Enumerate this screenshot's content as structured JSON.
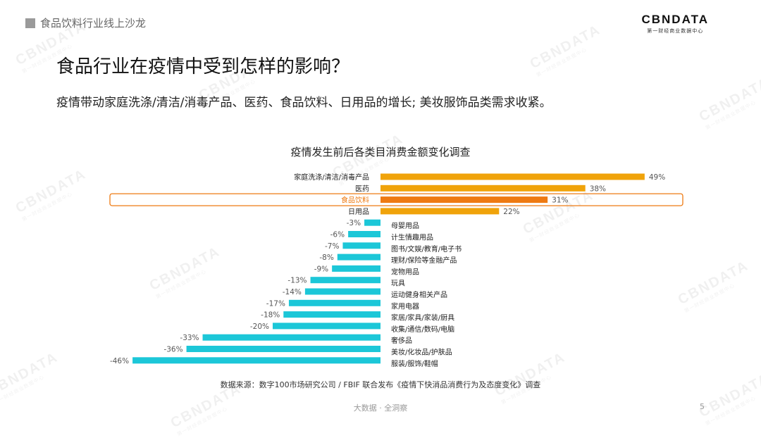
{
  "header": {
    "section_title": "食品饮料行业线上沙龙"
  },
  "logo": {
    "text": "CBNDATA",
    "subtext": "第一财经商业数据中心"
  },
  "page_title": "食品行业在疫情中受到怎样的影响？",
  "subtitle": "疫情带动家庭洗涤/清洁/消毒产品、医药、食品饮料、日用品的增长; 美妆服饰品类需求收紧。",
  "colors": {
    "positive": "#F0A30A",
    "highlight": "#EE7A12",
    "negative": "#1CC7D8",
    "highlight_box": "#EE7A12"
  },
  "chart_data": {
    "type": "bar",
    "orientation": "horizontal",
    "title": "疫情发生前后各类目消费金额变化调查",
    "unit": "%",
    "highlighted_category": "食品饮料",
    "categories": [
      "家庭洗涤/清洁/消毒产品",
      "医药",
      "食品饮料",
      "日用品",
      "母婴用品",
      "计生情趣用品",
      "图书/文娱/教育/电子书",
      "理财/保险等金融产品",
      "宠物用品",
      "玩具",
      "运动健身相关产品",
      "家用电器",
      "家居/家具/家装/厨具",
      "收集/通信/数码/电脑",
      "奢侈品",
      "美妆/化妆品/护肤品",
      "服装/服饰/鞋帽"
    ],
    "values": [
      49,
      38,
      31,
      22,
      -3,
      -6,
      -7,
      -8,
      -9,
      -13,
      -14,
      -17,
      -18,
      -20,
      -33,
      -36,
      -46
    ],
    "value_labels": [
      "49%",
      "38%",
      "31%",
      "22%",
      "-3%",
      "-6%",
      "-7%",
      "-8%",
      "-9%",
      "-13%",
      "-14%",
      "-17%",
      "-18%",
      "-20%",
      "-33%",
      "-36%",
      "-46%"
    ]
  },
  "source": "数据来源：数字100市场研究公司 / FBIF 联合发布《疫情下快消品消费行为及态度变化》调查",
  "footer": "大数据 · 全洞察",
  "page_number": "5",
  "watermark": {
    "text": "CBNDATA",
    "subtext": "第一财经商业数据中心"
  }
}
